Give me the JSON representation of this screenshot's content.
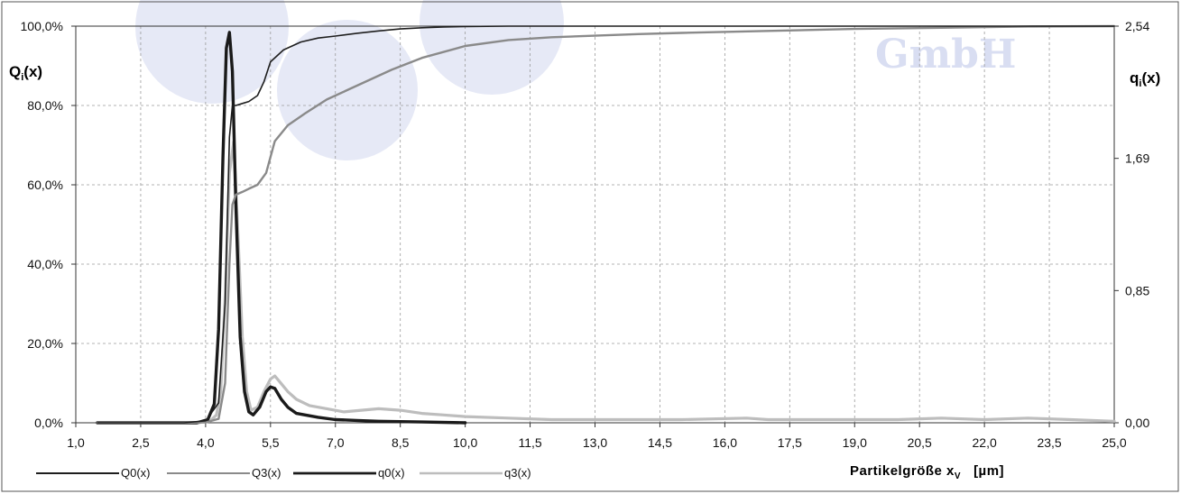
{
  "chart_data": {
    "type": "line",
    "xlabel": "Partikelgröße x",
    "xlabel_sub": "V",
    "xlabel_unit": "[µm]",
    "ylabel_left": "Q",
    "ylabel_left_sub": "i",
    "ylabel_left_suffix": "(x)",
    "ylabel_right": "q",
    "ylabel_right_sub": "i",
    "ylabel_right_suffix": "(x)",
    "xlim": [
      1.0,
      25.0
    ],
    "ylim_left": [
      0,
      100
    ],
    "ylim_right": [
      0,
      2.54
    ],
    "x_ticks": [
      "1,0",
      "2,5",
      "4,0",
      "5,5",
      "7,0",
      "8,5",
      "10,0",
      "11,5",
      "13,0",
      "14,5",
      "16,0",
      "17,5",
      "19,0",
      "20,5",
      "22,0",
      "23,5",
      "25,0"
    ],
    "y_left_ticks": [
      "0,0%",
      "20,0%",
      "40,0%",
      "60,0%",
      "80,0%",
      "100,0%"
    ],
    "y_right_ticks": [
      "0,00",
      "0,85",
      "1,69",
      "2,54"
    ],
    "grid": true,
    "legend_placement": "bottom-left",
    "watermark": "GmbH",
    "series": [
      {
        "name": "Q0(x)",
        "axis": "left",
        "color": "#1e1e1e",
        "width": 1.6,
        "x": [
          1.5,
          3.5,
          4.0,
          4.3,
          4.45,
          4.55,
          4.62,
          4.7,
          4.85,
          5.0,
          5.2,
          5.35,
          5.5,
          5.8,
          6.2,
          6.6,
          7.0,
          7.5,
          8.0,
          8.5,
          9.0,
          9.5,
          10.0,
          11.0,
          12.0,
          13.0,
          15.0,
          18.0,
          21.0,
          25.0
        ],
        "y": [
          0,
          0,
          0.5,
          5,
          30,
          72,
          80,
          80,
          80.5,
          81,
          82.5,
          86,
          91,
          94,
          96,
          97,
          97.5,
          98.2,
          98.8,
          99.3,
          99.6,
          99.8,
          99.9,
          100,
          100,
          100,
          100,
          100,
          100,
          100
        ]
      },
      {
        "name": "Q3(x)",
        "axis": "left",
        "color": "#8a8a8a",
        "width": 2.4,
        "x": [
          1.5,
          3.5,
          4.0,
          4.3,
          4.45,
          4.55,
          4.62,
          4.7,
          4.85,
          5.0,
          5.2,
          5.4,
          5.6,
          5.9,
          6.3,
          6.8,
          7.3,
          7.8,
          8.3,
          9.0,
          10.0,
          11.0,
          12.0,
          13.0,
          14.0,
          15.0,
          17.0,
          19.0,
          21.0,
          23.0,
          25.0
        ],
        "y": [
          0,
          0,
          0.1,
          1,
          10,
          40,
          55,
          57.5,
          58.2,
          59,
          60,
          63,
          71,
          75,
          78,
          81.5,
          84,
          86.5,
          89,
          92,
          95,
          96.5,
          97.2,
          97.6,
          98,
          98.3,
          98.8,
          99.3,
          99.6,
          99.9,
          100
        ]
      },
      {
        "name": "q0(x)",
        "axis": "right",
        "color": "#1a1a1a",
        "width": 3.4,
        "x": [
          1.5,
          3.8,
          4.05,
          4.2,
          4.3,
          4.4,
          4.48,
          4.55,
          4.62,
          4.7,
          4.8,
          4.9,
          5.0,
          5.1,
          5.25,
          5.4,
          5.5,
          5.6,
          5.75,
          5.9,
          6.1,
          6.3,
          6.6,
          7.0,
          7.5,
          8.0,
          9.0,
          10.0
        ],
        "y": [
          0,
          0,
          0.02,
          0.12,
          0.6,
          1.7,
          2.4,
          2.5,
          2.25,
          1.4,
          0.55,
          0.2,
          0.07,
          0.05,
          0.1,
          0.2,
          0.23,
          0.22,
          0.15,
          0.1,
          0.06,
          0.05,
          0.035,
          0.02,
          0.015,
          0.01,
          0.005,
          0
        ]
      },
      {
        "name": "q3(x)",
        "axis": "right",
        "color": "#bdbdbd",
        "width": 3.2,
        "x": [
          1.5,
          3.8,
          4.1,
          4.25,
          4.35,
          4.45,
          4.55,
          4.65,
          4.75,
          4.85,
          4.95,
          5.05,
          5.2,
          5.35,
          5.5,
          5.6,
          5.75,
          5.9,
          6.1,
          6.4,
          6.8,
          7.2,
          7.6,
          8.0,
          8.5,
          9.0,
          9.5,
          10.0,
          11.0,
          12.0,
          13.0,
          15.0,
          16.5,
          17.0,
          18.0,
          19.0,
          20.0,
          21.0,
          22.0,
          23.0,
          24.0,
          25.0
        ],
        "y": [
          0,
          0,
          0.01,
          0.05,
          0.2,
          0.8,
          1.6,
          1.8,
          1.2,
          0.55,
          0.2,
          0.08,
          0.1,
          0.2,
          0.28,
          0.3,
          0.25,
          0.2,
          0.15,
          0.11,
          0.09,
          0.07,
          0.08,
          0.09,
          0.08,
          0.06,
          0.05,
          0.04,
          0.03,
          0.02,
          0.02,
          0.02,
          0.03,
          0.02,
          0.02,
          0.02,
          0.02,
          0.03,
          0.02,
          0.03,
          0.02,
          0.01
        ]
      }
    ]
  }
}
